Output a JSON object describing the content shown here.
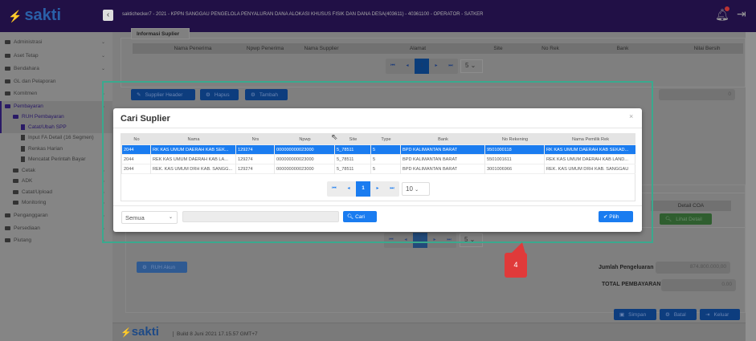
{
  "header": {
    "logo": "sakti",
    "title": "saktichecker7 - 2021 - KPPN SANGGAU PENGELOLA PENYALURAN DANA ALOKASI KHUSUS FISIK DAN DANA DESA(403611) - 40361100 - OPERATOR - SATKER",
    "collapse_icon": "chevron-left",
    "bell_icon": "bell",
    "logout_icon": "sign-out"
  },
  "sidebar": {
    "items": [
      {
        "label": "Administrasi",
        "icon": "folder"
      },
      {
        "label": "Aset Tetap",
        "icon": "folder"
      },
      {
        "label": "Bendahara",
        "icon": "folder"
      },
      {
        "label": "GL dan Pelaporan",
        "icon": "folder"
      },
      {
        "label": "Komitmen",
        "icon": "folder"
      },
      {
        "label": "Pembayaran",
        "icon": "folder"
      },
      {
        "label": "RUH Pembayaran",
        "icon": "folder"
      },
      {
        "label": "Catat/Ubah SPP",
        "icon": "file"
      },
      {
        "label": "Input FA Detail (16 Segmen)",
        "icon": "file"
      },
      {
        "label": "Renkas Harian",
        "icon": "file"
      },
      {
        "label": "Mencatat Perintah Bayar",
        "icon": "file"
      },
      {
        "label": "Cetak",
        "icon": "folder"
      },
      {
        "label": "ADK",
        "icon": "folder"
      },
      {
        "label": "Catat/Upload",
        "icon": "folder"
      },
      {
        "label": "Monitoring",
        "icon": "folder"
      },
      {
        "label": "Penganggaran",
        "icon": "folder"
      },
      {
        "label": "Persediaan",
        "icon": "folder"
      },
      {
        "label": "Piutang",
        "icon": "folder"
      }
    ]
  },
  "main": {
    "info_tab": "Informasi Suplier",
    "info_columns": [
      "Nama Penerima",
      "Npwp Penerima",
      "Nama Supplier",
      "Alamat",
      "Site",
      "No Rek",
      "Bank",
      "Nilai Bersih"
    ],
    "page": "1",
    "page_size": "5",
    "buttons": {
      "supplier_header": "Supplier Header",
      "hapus": "Hapus",
      "tambah": "Tambah",
      "ruh_akun": "RUH Akun",
      "lihat_detail": "Lihat Detail",
      "simpan": "Simpan",
      "batal": "Batal",
      "keluar": "Keluar"
    },
    "top_value": "0",
    "detail_coa": "Detail COA",
    "jumlah_label": "Jumlah Pengeluaran",
    "jumlah_value": "874.800.000,00",
    "total_label": "TOTAL PEMBAYARAN",
    "total_value": "0.00"
  },
  "footer": {
    "logo": "sakti",
    "build": "Build 8 Juni 2021 17.15.57 GMT+7"
  },
  "modal": {
    "title": "Cari Suplier",
    "close": "×",
    "columns": [
      "No",
      "Nama",
      "Nrs",
      "Npwp",
      "Site",
      "Type",
      "Bank",
      "No Rekening",
      "Nama Pemilik Rek"
    ],
    "rows": [
      [
        "2044",
        "RK KAS UMUM DAERAH KAB SEK...",
        "129274",
        "000000000023000",
        "5_78511",
        "5",
        "BPD KALIMANTAN BARAT",
        "9501000118",
        "RK KAS UMUM DAERAH KAB SEKAD..."
      ],
      [
        "2044",
        "REK KAS UMUM DAERAH KAB LA...",
        "129274",
        "000000000023000",
        "5_78511",
        "5",
        "BPD KALIMANTAN BARAT",
        "5501001611",
        "REK KAS UMUM DAERAH KAB LAND..."
      ],
      [
        "2044",
        "REK. KAS UMUM DRH KAB. SANGG...",
        "129274",
        "000000000023000",
        "5_78511",
        "5",
        "BPD KALIMANTAN BARAT",
        "3001006966",
        "REK. KAS UMUM DRH KAB. SANGGAU"
      ]
    ],
    "selected_row": 0,
    "page": "1",
    "page_size": "10",
    "filter": "Semua",
    "search_value": "",
    "cari": "Cari",
    "pilih": "Pilih"
  },
  "callout": "4",
  "colors": {
    "accent": "#1a7cf0",
    "header": "#2b1560",
    "highlight_box": "#3aa98e",
    "callout": "#e03a3a"
  }
}
